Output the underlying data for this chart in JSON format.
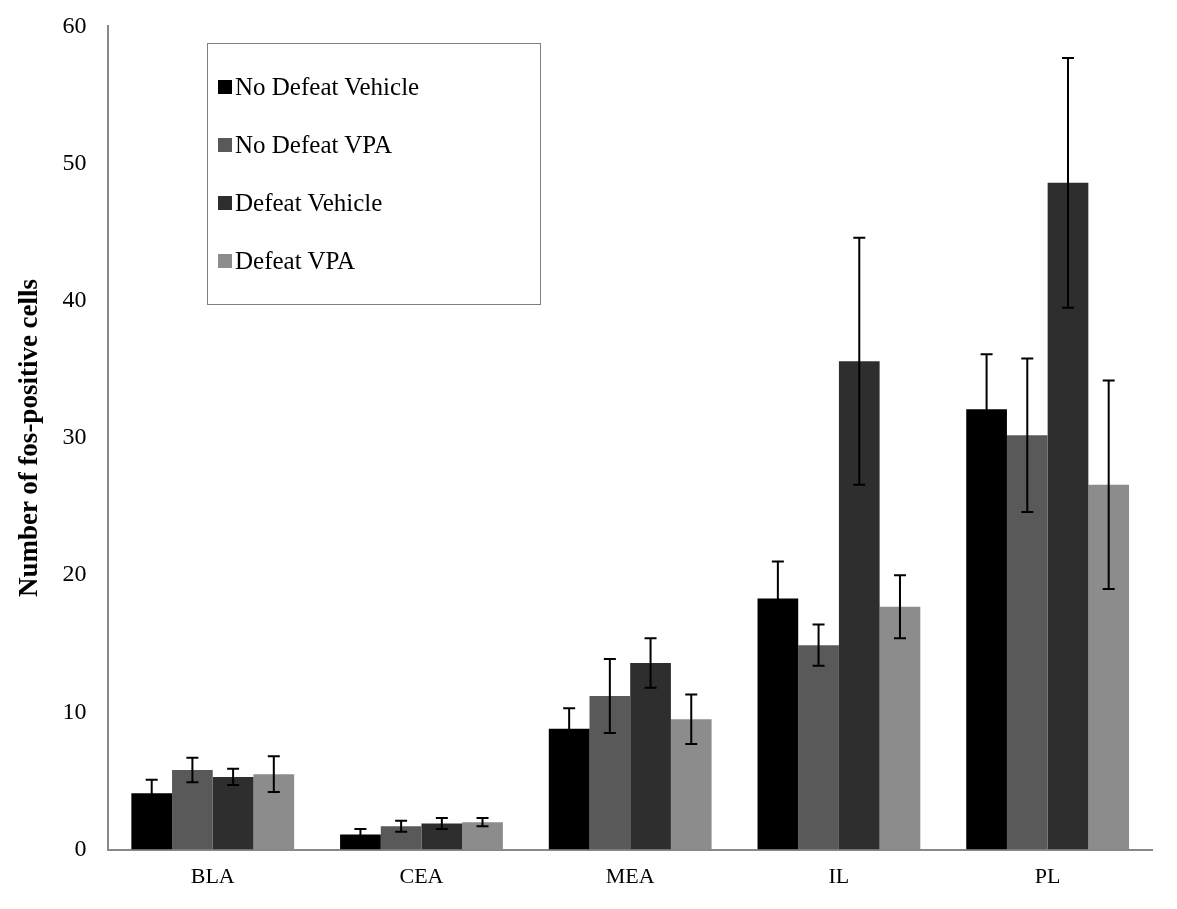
{
  "chart_data": {
    "type": "bar",
    "ylabel": "Number of fos-positive cells",
    "categories": [
      "BLA",
      "CEA",
      "MEA",
      "IL",
      "PL"
    ],
    "series": [
      {
        "name": "No Defeat Vehicle",
        "color": "#000000",
        "values": [
          4.1,
          1.1,
          8.8,
          18.3,
          32.1
        ],
        "errors": [
          1.0,
          0.4,
          1.5,
          2.7,
          4.0
        ]
      },
      {
        "name": "No Defeat VPA",
        "color": "#595959",
        "values": [
          5.8,
          1.7,
          11.2,
          14.9,
          30.2
        ],
        "errors": [
          0.9,
          0.4,
          2.7,
          1.5,
          5.6
        ]
      },
      {
        "name": "Defeat Vehicle",
        "color": "#2e2e2e",
        "values": [
          5.3,
          1.9,
          13.6,
          35.6,
          48.6
        ],
        "errors": [
          0.6,
          0.4,
          1.8,
          9.0,
          9.1
        ]
      },
      {
        "name": "Defeat VPA",
        "color": "#8c8c8c",
        "values": [
          5.5,
          2.0,
          9.5,
          17.7,
          26.6
        ],
        "errors": [
          1.3,
          0.3,
          1.8,
          2.3,
          7.6
        ]
      }
    ],
    "ylim": [
      0,
      60
    ],
    "yticks": [
      0,
      10,
      20,
      30,
      40,
      50,
      60
    ],
    "grid": false,
    "legend": "top left"
  }
}
